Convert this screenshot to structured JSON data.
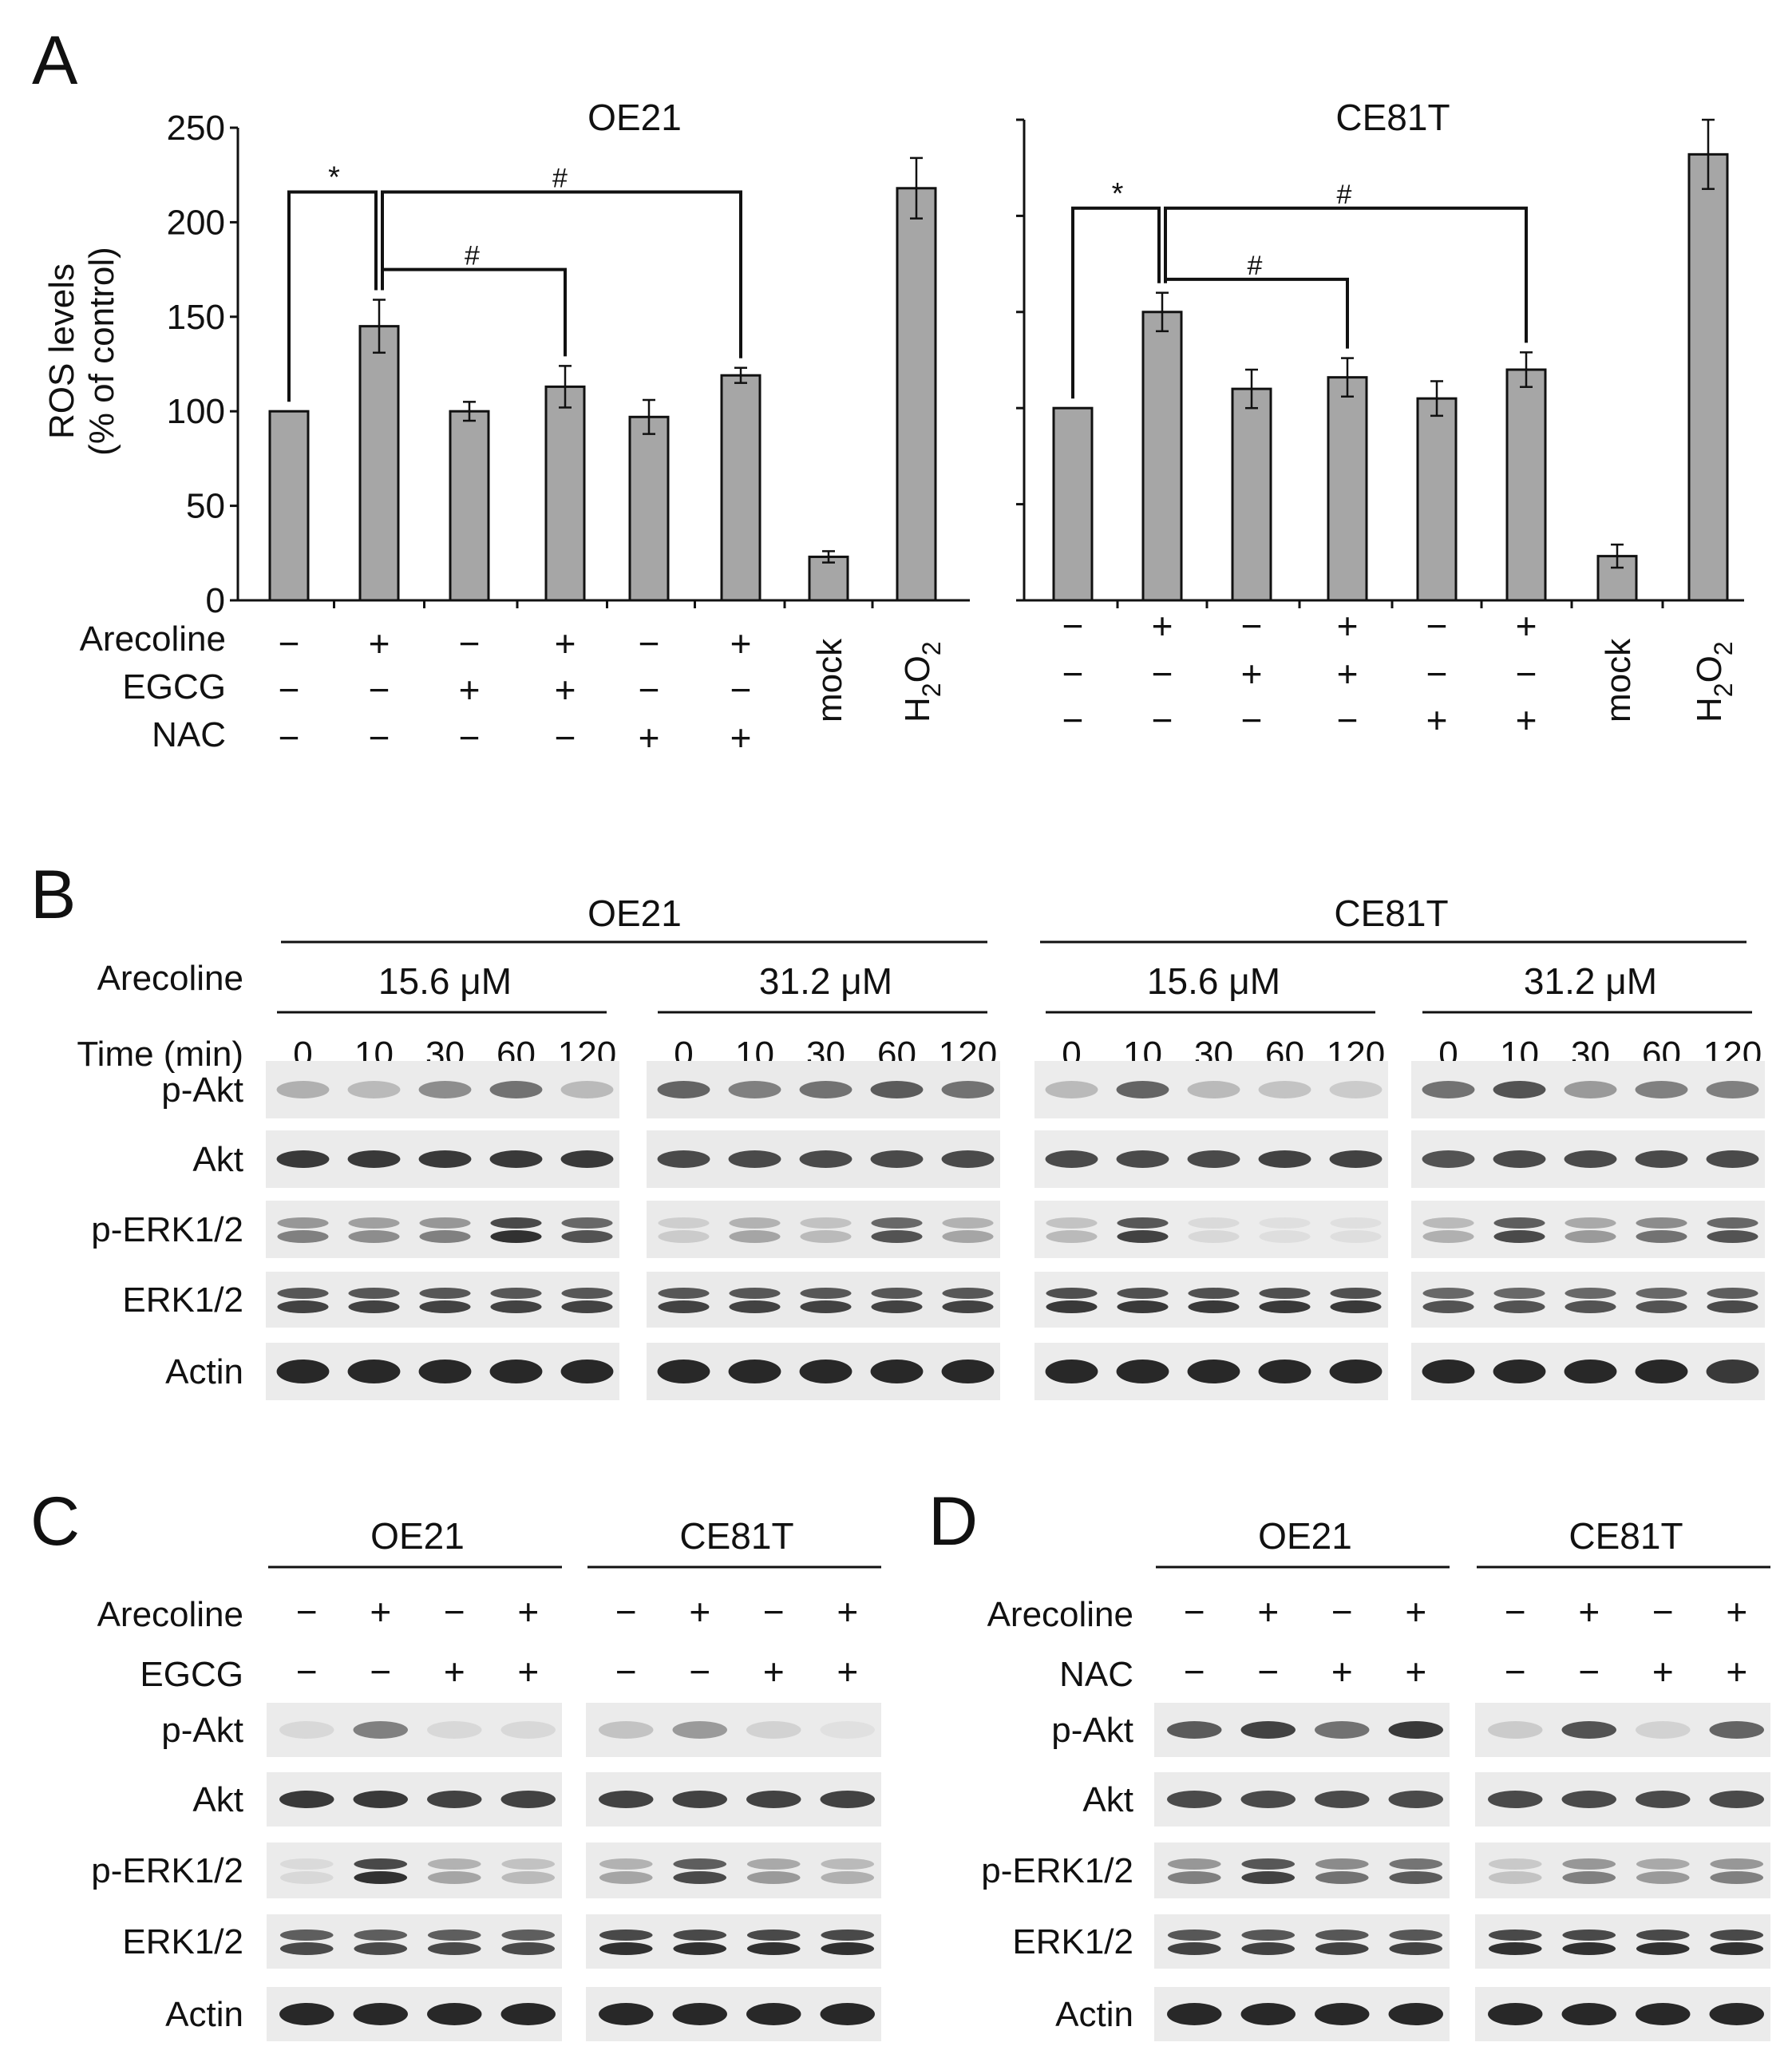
{
  "panelA": {
    "letter": "A",
    "ylabel_line1": "ROS levels",
    "ylabel_line2": "(% of control)",
    "treatment_labels": [
      "Arecoline",
      "EGCG",
      "NAC"
    ],
    "extra_labels": [
      "mock",
      "H2O2"
    ],
    "sig_star": "*",
    "sig_hash": "#"
  },
  "chart_data": [
    {
      "type": "bar",
      "title": "OE21",
      "ylabel": "ROS levels (% of control)",
      "ylim": [
        0,
        250
      ],
      "yticks": [
        0,
        50,
        100,
        150,
        200,
        250
      ],
      "categories": [
        "control",
        "Arecoline",
        "EGCG",
        "Arecoline+EGCG",
        "NAC",
        "Arecoline+NAC",
        "mock",
        "H2O2"
      ],
      "values": [
        100,
        145,
        100,
        113,
        97,
        119,
        23,
        218
      ],
      "errors": [
        0,
        14,
        5,
        11,
        9,
        4,
        3,
        16
      ],
      "arecoline": [
        "−",
        "+",
        "−",
        "+",
        "−",
        "+"
      ],
      "egcg": [
        "−",
        "−",
        "+",
        "+",
        "−",
        "−"
      ],
      "nac": [
        "−",
        "−",
        "−",
        "−",
        "+",
        "+"
      ],
      "significance": [
        {
          "from": 0,
          "to": 1,
          "label": "*"
        },
        {
          "from": 1,
          "to": 3,
          "label": "#"
        },
        {
          "from": 1,
          "to": 5,
          "label": "#"
        }
      ]
    },
    {
      "type": "bar",
      "title": "CE81T",
      "ylim": [
        0,
        250
      ],
      "categories": [
        "control",
        "Arecoline",
        "EGCG",
        "Arecoline+EGCG",
        "NAC",
        "Arecoline+NAC",
        "mock",
        "H2O2"
      ],
      "values": [
        100,
        150,
        110,
        116,
        105,
        120,
        23,
        232
      ],
      "errors": [
        0,
        10,
        10,
        10,
        9,
        9,
        6,
        18
      ],
      "arecoline": [
        "−",
        "+",
        "−",
        "+",
        "−",
        "+"
      ],
      "egcg": [
        "−",
        "−",
        "+",
        "+",
        "−",
        "−"
      ],
      "nac": [
        "−",
        "−",
        "−",
        "−",
        "+",
        "+"
      ],
      "significance": [
        {
          "from": 0,
          "to": 1,
          "label": "*"
        },
        {
          "from": 1,
          "to": 3,
          "label": "#"
        },
        {
          "from": 1,
          "to": 5,
          "label": "#"
        }
      ]
    }
  ],
  "panelB": {
    "letter": "B",
    "row_labels": [
      "Arecoline",
      "Time (min)"
    ],
    "cells": [
      "OE21",
      "CE81T"
    ],
    "doses": [
      "15.6 μM",
      "31.2 μM"
    ],
    "times": [
      "0",
      "10",
      "30",
      "60",
      "120"
    ],
    "proteins": [
      "p-Akt",
      "Akt",
      "p-ERK1/2",
      "ERK1/2",
      "Actin"
    ]
  },
  "panelC": {
    "letter": "C",
    "cells": [
      "OE21",
      "CE81T"
    ],
    "treatments": [
      "Arecoline",
      "EGCG"
    ],
    "signs": [
      [
        "−",
        "+",
        "−",
        "+"
      ],
      [
        "−",
        "−",
        "+",
        "+"
      ]
    ],
    "proteins": [
      "p-Akt",
      "Akt",
      "p-ERK1/2",
      "ERK1/2",
      "Actin"
    ]
  },
  "panelD": {
    "letter": "D",
    "cells": [
      "OE21",
      "CE81T"
    ],
    "treatments": [
      "Arecoline",
      "NAC"
    ],
    "signs": [
      [
        "−",
        "+",
        "−",
        "+"
      ],
      [
        "−",
        "−",
        "+",
        "+"
      ]
    ],
    "proteins": [
      "p-Akt",
      "Akt",
      "p-ERK1/2",
      "ERK1/2",
      "Actin"
    ]
  },
  "blots": {
    "B": [
      {
        "pAkt": [
          0.35,
          0.3,
          0.5,
          0.6,
          0.3
        ],
        "Akt": [
          0.9,
          0.9,
          0.9,
          0.9,
          0.9
        ],
        "pERK": [
          0.55,
          0.5,
          0.55,
          0.95,
          0.75
        ],
        "ERK": [
          0.85,
          0.85,
          0.85,
          0.85,
          0.85
        ],
        "Actin": [
          1,
          1,
          1,
          1,
          1
        ],
        "bg": 0.88
      },
      {
        "pAkt": [
          0.65,
          0.55,
          0.6,
          0.7,
          0.6
        ],
        "Akt": [
          0.8,
          0.8,
          0.8,
          0.8,
          0.8
        ],
        "pERK": [
          0.2,
          0.4,
          0.3,
          0.75,
          0.4
        ],
        "ERK": [
          0.85,
          0.85,
          0.85,
          0.85,
          0.85
        ],
        "Actin": [
          1,
          1,
          1,
          1,
          1
        ],
        "bg": 0.86
      },
      {
        "pAkt": [
          0.3,
          0.65,
          0.3,
          0.25,
          0.2
        ],
        "Akt": [
          0.8,
          0.8,
          0.8,
          0.85,
          0.85
        ],
        "pERK": [
          0.3,
          0.85,
          0.1,
          0.05,
          0.05
        ],
        "ERK": [
          0.9,
          0.9,
          0.9,
          0.9,
          0.9
        ],
        "Actin": [
          1,
          1,
          1,
          1,
          1
        ],
        "bg": 0.9
      },
      {
        "pAkt": [
          0.6,
          0.75,
          0.45,
          0.55,
          0.55
        ],
        "Akt": [
          0.75,
          0.8,
          0.8,
          0.8,
          0.8
        ],
        "pERK": [
          0.35,
          0.8,
          0.45,
          0.6,
          0.75
        ],
        "ERK": [
          0.75,
          0.75,
          0.75,
          0.75,
          0.8
        ],
        "Actin": [
          1,
          1,
          1,
          1,
          0.9
        ],
        "bg": 0.9
      }
    ],
    "C": [
      {
        "pAkt": [
          0.1,
          0.55,
          0.1,
          0.1
        ],
        "Akt": [
          0.9,
          0.9,
          0.85,
          0.85
        ],
        "pERK": [
          0.1,
          0.95,
          0.4,
          0.3
        ],
        "ERK": [
          0.8,
          0.8,
          0.8,
          0.8
        ],
        "Actin": [
          1,
          1,
          1,
          1
        ],
        "bg": 0.88
      },
      {
        "pAkt": [
          0.25,
          0.45,
          0.15,
          0.02
        ],
        "Akt": [
          0.85,
          0.85,
          0.85,
          0.85
        ],
        "pERK": [
          0.4,
          0.8,
          0.45,
          0.35
        ],
        "ERK": [
          0.95,
          0.95,
          0.95,
          0.95
        ],
        "Actin": [
          1,
          1,
          1,
          1
        ],
        "bg": 0.88
      }
    ],
    "D": [
      {
        "pAkt": [
          0.7,
          0.85,
          0.6,
          0.9
        ],
        "Akt": [
          0.8,
          0.8,
          0.8,
          0.8
        ],
        "pERK": [
          0.55,
          0.85,
          0.6,
          0.7
        ],
        "ERK": [
          0.85,
          0.85,
          0.85,
          0.85
        ],
        "Actin": [
          1,
          1,
          1,
          1
        ],
        "bg": 0.88
      },
      {
        "pAkt": [
          0.2,
          0.75,
          0.15,
          0.65
        ],
        "Akt": [
          0.8,
          0.8,
          0.8,
          0.8
        ],
        "pERK": [
          0.25,
          0.55,
          0.45,
          0.55
        ],
        "ERK": [
          0.95,
          0.95,
          0.95,
          0.95
        ],
        "Actin": [
          1,
          1,
          1,
          1
        ],
        "bg": 0.88
      }
    ]
  }
}
